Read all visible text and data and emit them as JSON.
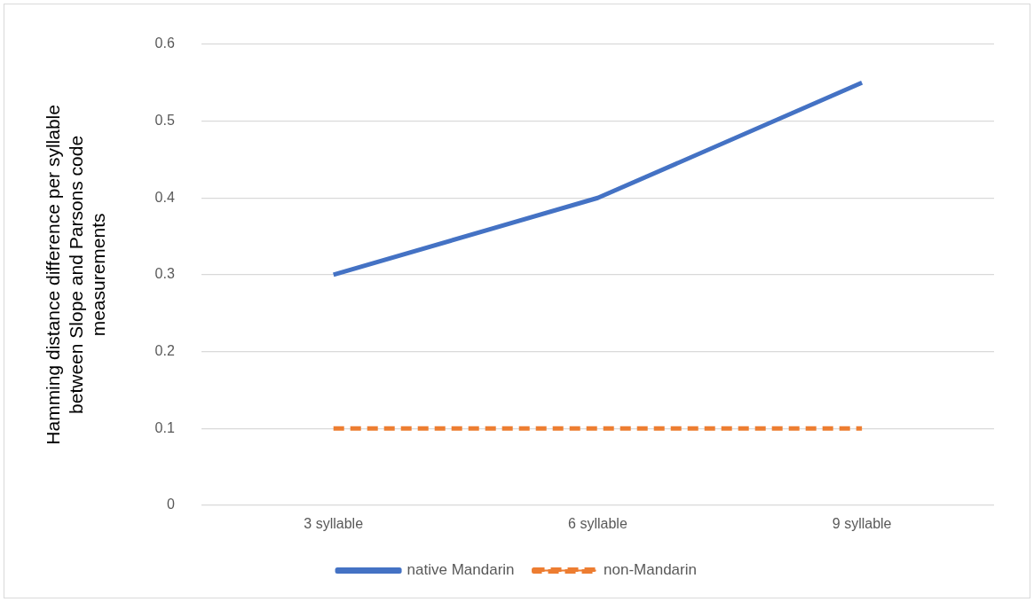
{
  "chart_data": {
    "type": "line",
    "ylabel": "Hamming distance difference per syllable between Slope and Parsons code measurements",
    "categories": [
      "3 syllable",
      "6 syllable",
      "9 syllable"
    ],
    "series": [
      {
        "name": "native Mandarin",
        "color": "#4472c4",
        "values": [
          0.3,
          0.4,
          0.55
        ],
        "line_style": "solid"
      },
      {
        "name": "non-Mandarin",
        "color": "#ed7d31",
        "values": [
          0.1,
          0.1,
          0.1
        ],
        "line_style": "dashed"
      }
    ],
    "ylim": [
      0,
      0.6
    ],
    "yticks": [
      0,
      0.1,
      0.2,
      0.3,
      0.4,
      0.5,
      0.6
    ],
    "grid": "y",
    "legend": "bottom",
    "marker": "none"
  }
}
